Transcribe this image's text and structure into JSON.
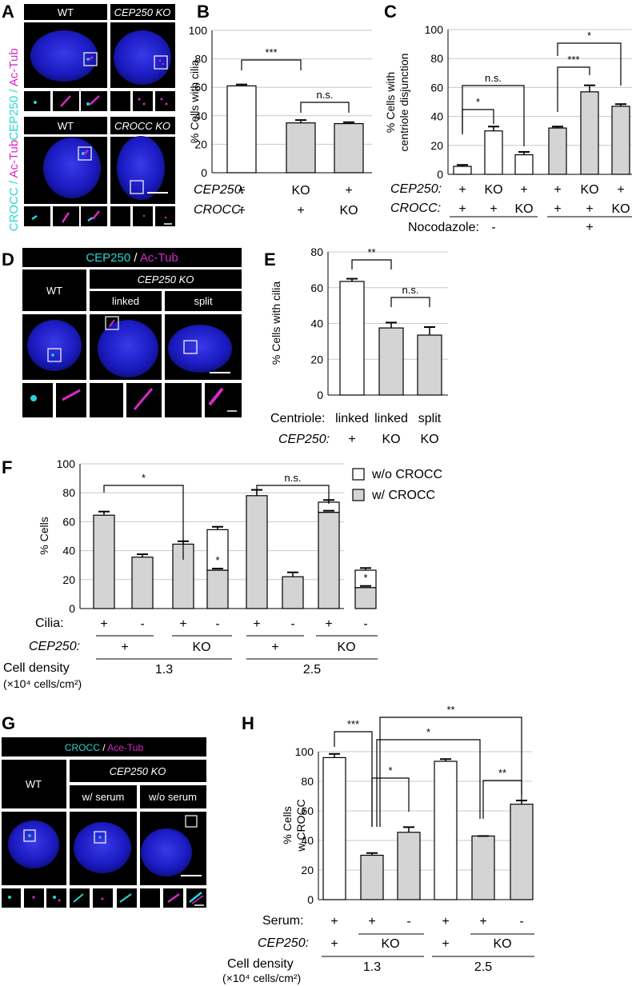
{
  "figure": {
    "panel_letters": [
      "A",
      "B",
      "C",
      "D",
      "E",
      "F",
      "G",
      "H"
    ],
    "colors": {
      "nucleus": "#1a1acc",
      "cyan": "#26d6d6",
      "magenta": "#d829c8",
      "bar_gray": "#d4d4d4",
      "bar_white": "#ffffff"
    }
  },
  "panelA": {
    "label_cep250": "CEP250",
    "label_croc": "CROCC",
    "label_slash": " / ",
    "label_actub": "Ac-Tub",
    "top_wt": "WT",
    "top_ko": "CEP250 KO",
    "bottom_wt": "WT",
    "bottom_ko": "CROCC KO"
  },
  "panelD": {
    "header_cep250": "CEP250",
    "header_slash": " / ",
    "header_actub": "Ac-Tub",
    "wt": "WT",
    "ko": "CEP250 KO",
    "linked": "linked",
    "split": "split"
  },
  "panelG": {
    "header_croc": "CROCC",
    "header_slash": " / ",
    "header_actub": "Ace-Tub",
    "wt": "WT",
    "ko": "CEP250 KO",
    "with_serum": "w/ serum",
    "without_serum": "w/o serum"
  },
  "chart_data": [
    {
      "id": "B",
      "type": "bar",
      "ylabel": "% Cells with cilia",
      "ylim": [
        0,
        100
      ],
      "yticks": [
        0,
        20,
        40,
        60,
        80,
        100
      ],
      "values": [
        61,
        35,
        34.5
      ],
      "errors": [
        1,
        2,
        1
      ],
      "fills": [
        "white",
        "gray",
        "gray"
      ],
      "row_labels": [
        "CEP250:",
        "CROCC:"
      ],
      "rows": [
        [
          "+",
          "KO",
          "+"
        ],
        [
          "+",
          "+",
          "KO"
        ]
      ],
      "significance": [
        {
          "from": 0,
          "to": 1,
          "text": "***"
        },
        {
          "from": 1,
          "to": 2,
          "text": "n.s."
        }
      ]
    },
    {
      "id": "C",
      "type": "bar",
      "ylabel": "% Cells with centriole disjunction",
      "ylim": [
        0,
        100
      ],
      "yticks": [
        0,
        20,
        40,
        60,
        80,
        100
      ],
      "values": [
        5.5,
        30,
        13.5,
        32,
        57,
        47
      ],
      "errors": [
        1,
        3,
        2,
        1,
        4.5,
        1.5
      ],
      "fills": [
        "white",
        "white",
        "white",
        "gray",
        "gray",
        "gray"
      ],
      "row_labels": [
        "CEP250:",
        "CROCC:",
        "Nocodazole:"
      ],
      "rows": [
        [
          "+",
          "KO",
          "+",
          "+",
          "KO",
          "+"
        ],
        [
          "+",
          "+",
          "KO",
          "+",
          "+",
          "KO"
        ]
      ],
      "nocodazole": [
        "-",
        "+"
      ],
      "significance": [
        {
          "from": 0,
          "to": 1,
          "text": "*"
        },
        {
          "from": 0,
          "to": 2,
          "text": "n.s."
        },
        {
          "from": 3,
          "to": 4,
          "text": "***"
        },
        {
          "from": 3,
          "to": 5,
          "text": "*"
        }
      ]
    },
    {
      "id": "E",
      "type": "bar",
      "ylabel": "% Cells with cilia",
      "ylim": [
        0,
        80
      ],
      "yticks": [
        0,
        20,
        40,
        60,
        80
      ],
      "values": [
        63.5,
        37.5,
        33.5
      ],
      "errors": [
        1.5,
        3,
        4.5
      ],
      "fills": [
        "white",
        "gray",
        "gray"
      ],
      "row_labels": [
        "Centriole:",
        "CEP250:"
      ],
      "rows": [
        [
          "linked",
          "linked",
          "split"
        ],
        [
          "+",
          "KO",
          "KO"
        ]
      ],
      "significance": [
        {
          "from": 0,
          "to": 1,
          "text": "**"
        },
        {
          "from": 1,
          "to": 2,
          "text": "n.s."
        }
      ]
    },
    {
      "id": "F",
      "type": "bar",
      "ylabel": "% Cells",
      "ylim": [
        0,
        100
      ],
      "yticks": [
        0,
        20,
        40,
        60,
        80,
        100
      ],
      "series": [
        {
          "name": "w/ CROCC",
          "values": [
            64.5,
            35.5,
            44.5,
            26.5,
            78,
            22,
            66.5,
            14.5
          ]
        },
        {
          "name": "w/o CROCC",
          "values": [
            0,
            0,
            0,
            28,
            0,
            0,
            7,
            12
          ]
        }
      ],
      "errors": [
        2.5,
        2,
        2,
        2,
        4,
        3,
        1.5,
        1.5
      ],
      "row_labels": [
        "Cilia:",
        "CEP250:",
        "Cell density",
        "(×10⁴ cells/cm²)"
      ],
      "cilia": [
        "+",
        "-",
        "+",
        "-",
        "+",
        "-",
        "+",
        "-"
      ],
      "cep250": [
        "+",
        "KO",
        "+",
        "KO"
      ],
      "density": [
        "1.3",
        "2.5"
      ],
      "legend": {
        "position": "top-right"
      },
      "significance": [
        {
          "from": 0,
          "to": 2,
          "text": "*"
        },
        {
          "from": 4,
          "to": 6,
          "text": "n.s."
        }
      ],
      "inner_marks": [
        {
          "bar": 3,
          "text": "*"
        },
        {
          "bar": 7,
          "text": "*"
        }
      ]
    },
    {
      "id": "H",
      "type": "bar",
      "ylabel": "% Cells w CROCC",
      "ylim": [
        0,
        100
      ],
      "yticks": [
        0,
        20,
        40,
        60,
        80,
        100
      ],
      "values": [
        96,
        30,
        45.5,
        93.5,
        43,
        64.5
      ],
      "errors": [
        2.5,
        1.5,
        3.5,
        1.5,
        0,
        2.5
      ],
      "fills": [
        "white",
        "gray",
        "gray",
        "white",
        "gray",
        "gray"
      ],
      "row_labels": [
        "Serum:",
        "CEP250:",
        "Cell density",
        "(×10⁴ cells/cm²)"
      ],
      "serum": [
        "+",
        "+",
        "-",
        "+",
        "+",
        "-"
      ],
      "cep250": [
        "+",
        "KO",
        "+",
        "KO"
      ],
      "density": [
        "1.3",
        "2.5"
      ],
      "significance": [
        {
          "from": 0,
          "to": 1,
          "text": "***"
        },
        {
          "from": 1,
          "to": 2,
          "text": "*"
        },
        {
          "from": 1,
          "to": 4,
          "text": "*"
        },
        {
          "from": 1,
          "to": 5,
          "text": "**"
        },
        {
          "from": 4,
          "to": 5,
          "text": "**"
        }
      ]
    }
  ]
}
